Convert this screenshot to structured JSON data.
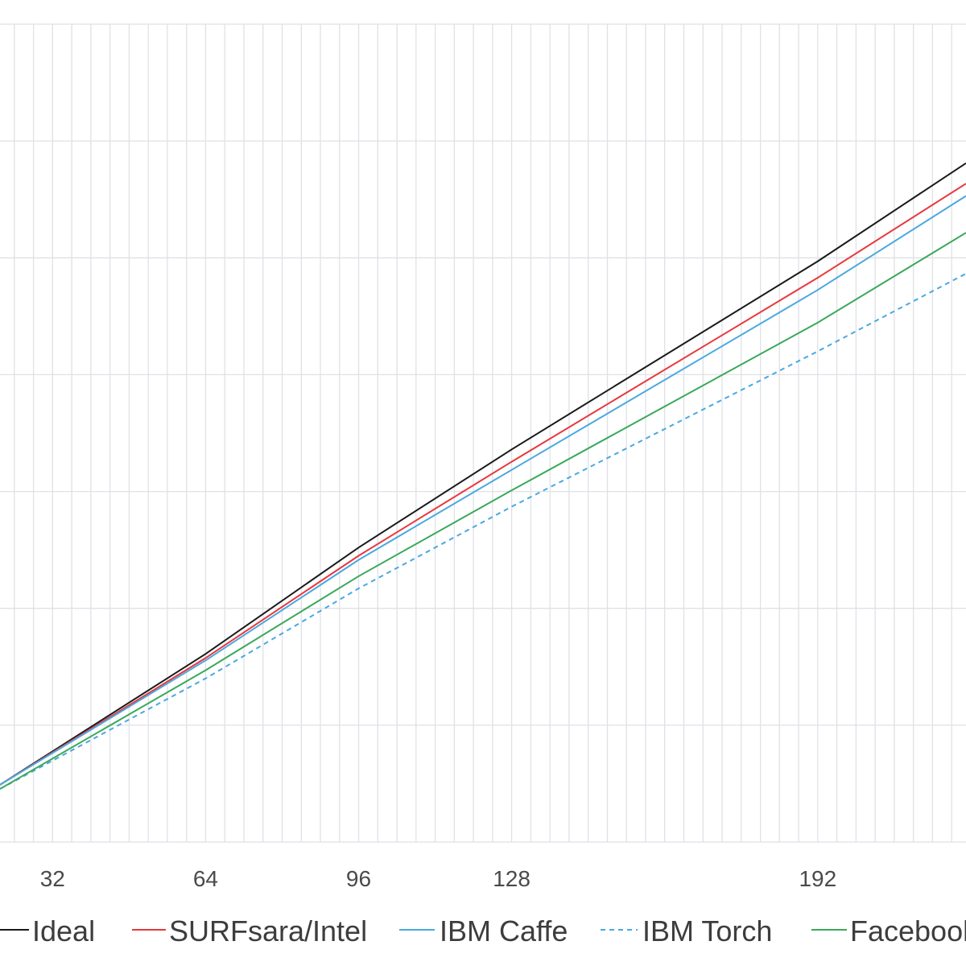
{
  "chart_data": {
    "type": "line",
    "title": "",
    "xlabel": "",
    "ylabel": "",
    "xlim": [
      21,
      223
    ],
    "ylim": [
      0,
      1
    ],
    "grid": true,
    "legend_position": "bottom",
    "x_ticks": [
      32,
      64,
      96,
      128,
      192
    ],
    "x_tick_labels": [
      "32",
      "64",
      "96",
      "128",
      "192"
    ],
    "series": [
      {
        "name": "Ideal",
        "color": "#1a1a1a",
        "dash": "solid",
        "x": [
          21,
          64,
          96,
          128,
          192,
          223
        ],
        "y": [
          0.07,
          0.23,
          0.36,
          0.48,
          0.71,
          0.83
        ]
      },
      {
        "name": "SURFsara/Intel",
        "color": "#e8383d",
        "dash": "solid",
        "x": [
          21,
          64,
          96,
          128,
          192,
          223
        ],
        "y": [
          0.07,
          0.225,
          0.35,
          0.465,
          0.69,
          0.805
        ]
      },
      {
        "name": "IBM Caffe",
        "color": "#4aa8e0",
        "dash": "solid",
        "x": [
          21,
          64,
          96,
          128,
          192,
          223
        ],
        "y": [
          0.07,
          0.222,
          0.345,
          0.455,
          0.675,
          0.79
        ]
      },
      {
        "name": "IBM Torch",
        "color": "#4aa8e0",
        "dash": "dashed",
        "x": [
          21,
          64,
          96,
          128,
          192,
          223
        ],
        "y": [
          0.065,
          0.2,
          0.31,
          0.41,
          0.6,
          0.695
        ]
      },
      {
        "name": "Facebook",
        "color": "#3aa85a",
        "dash": "solid",
        "x": [
          21,
          64,
          96,
          128,
          192,
          223
        ],
        "y": [
          0.065,
          0.21,
          0.325,
          0.43,
          0.635,
          0.745
        ]
      }
    ]
  }
}
